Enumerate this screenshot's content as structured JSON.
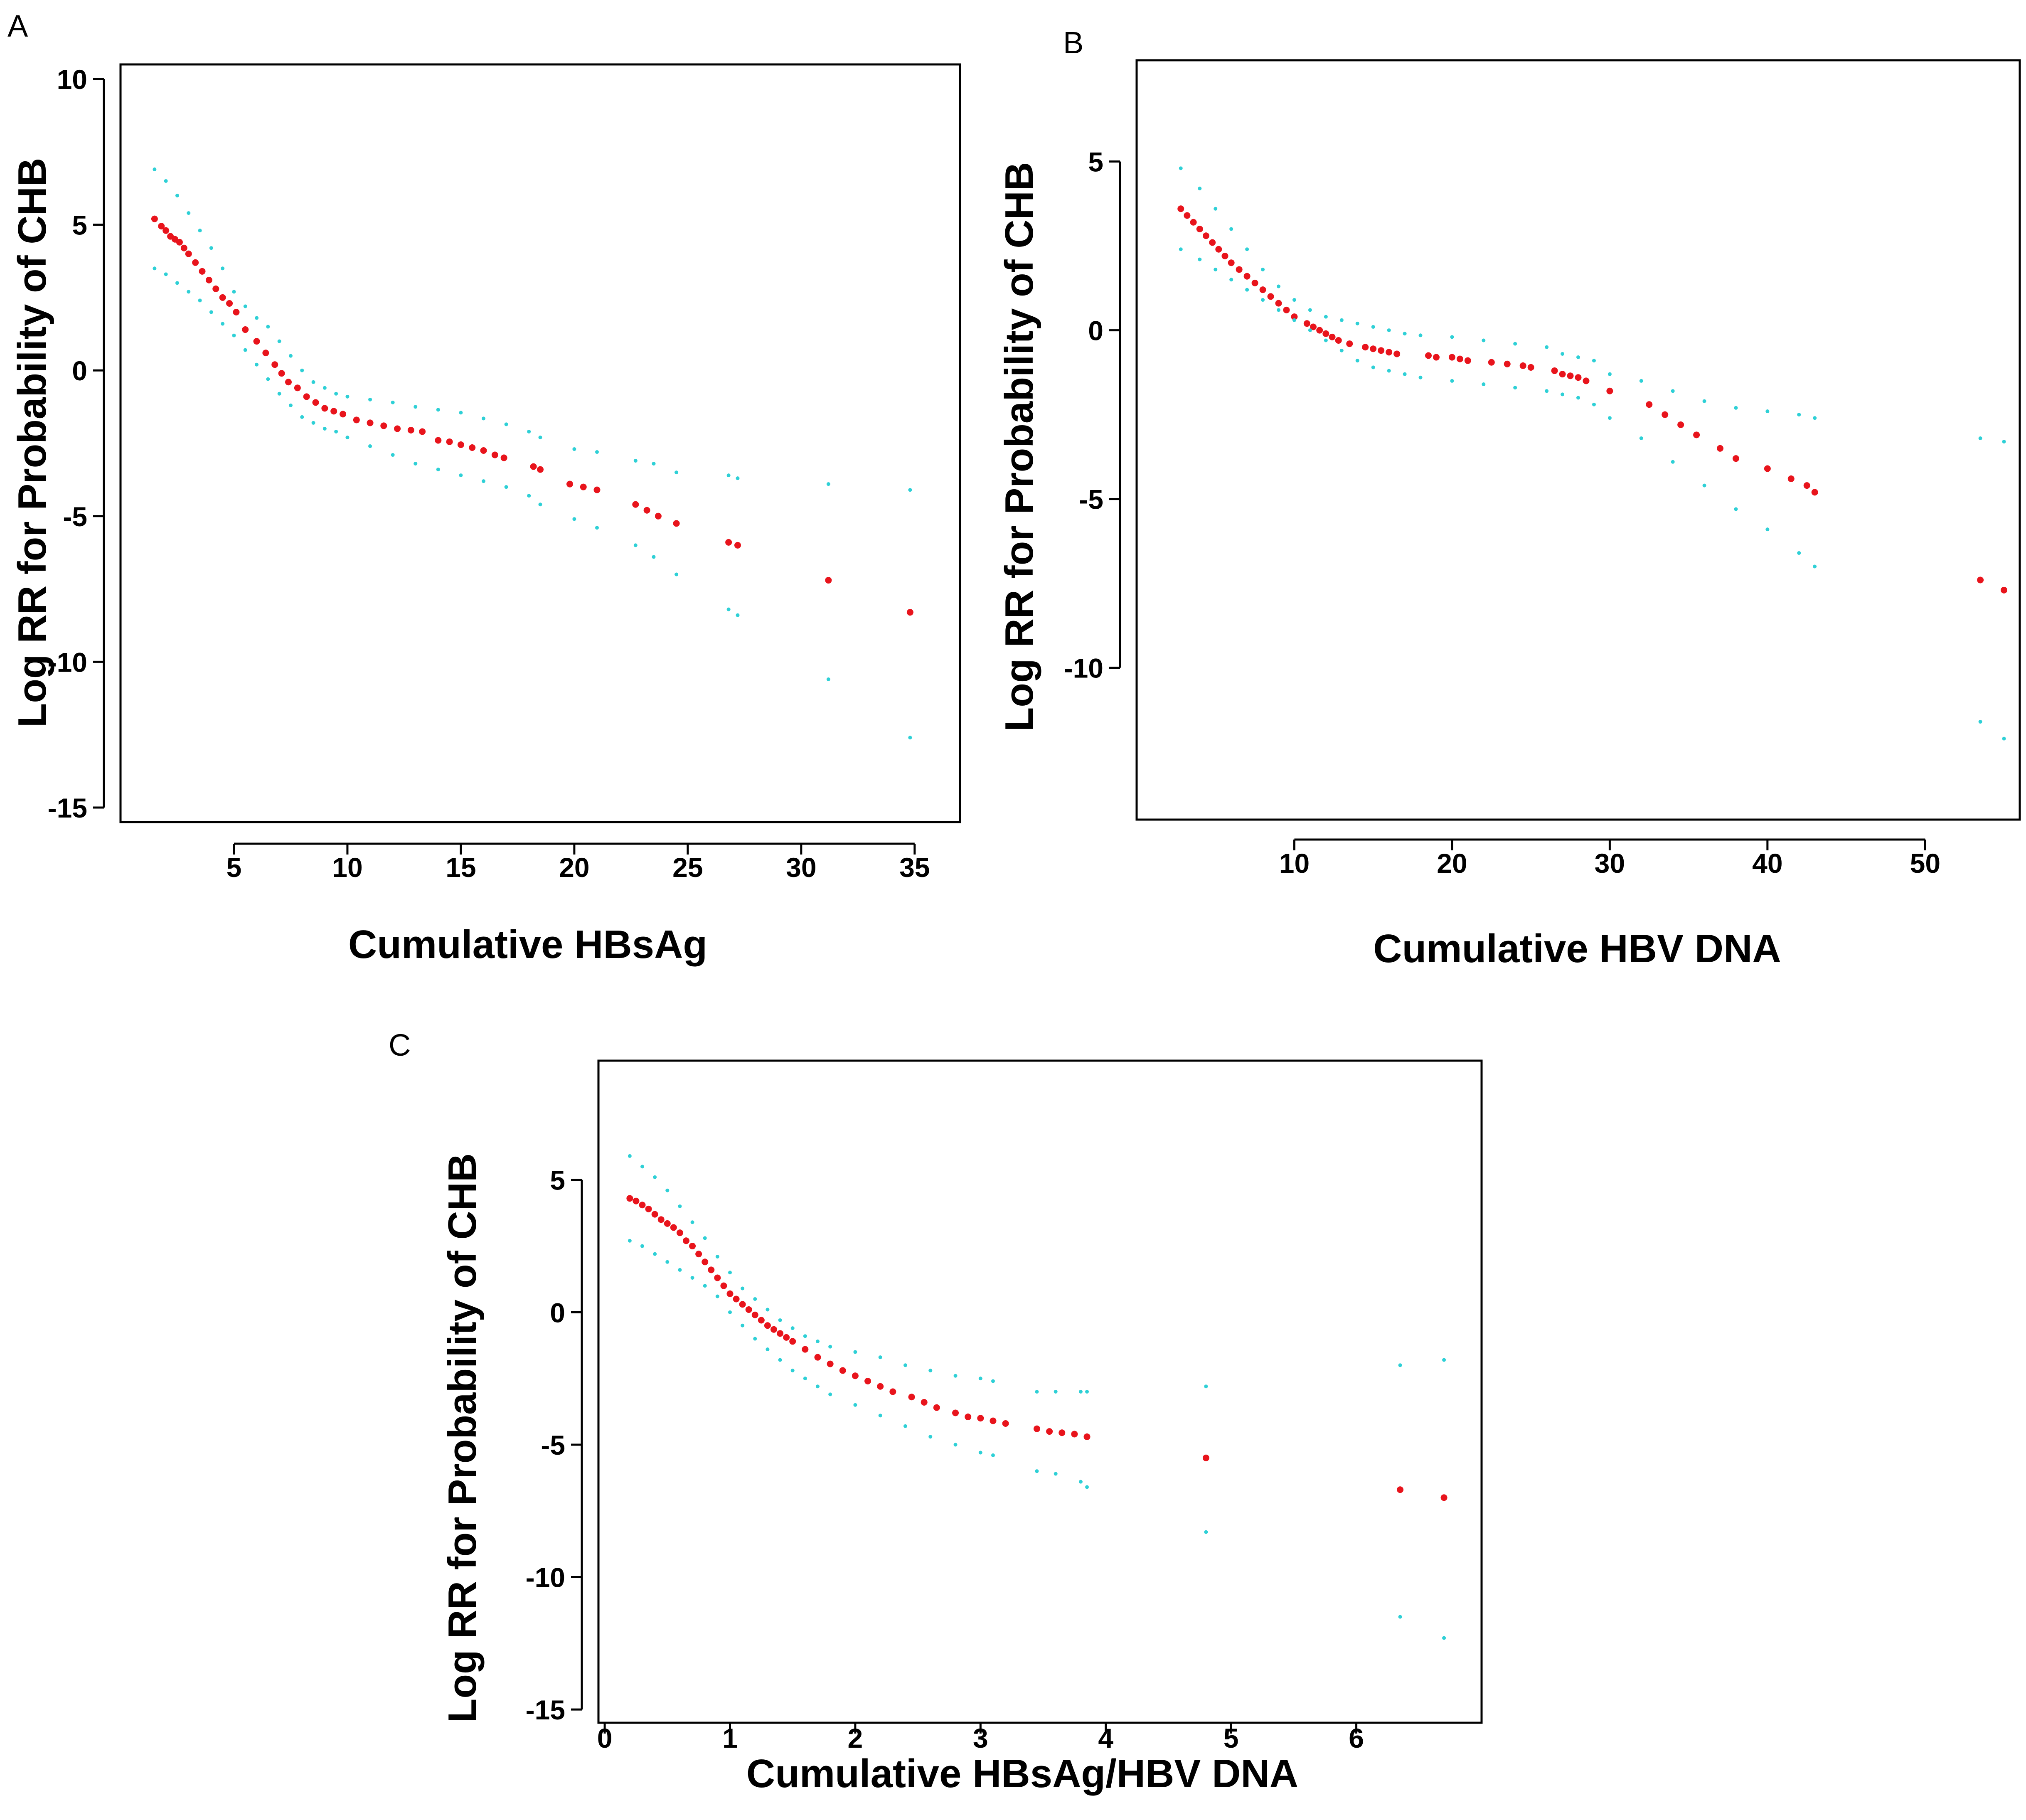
{
  "chart_data": [
    {
      "panel": "A",
      "type": "scatter",
      "title": "",
      "xlabel": "Cumulative  HBsAg",
      "ylabel": "Log RR for Probability  of  CHB",
      "xlim": [
        0,
        37
      ],
      "ylim": [
        -15.5,
        10.5
      ],
      "xticks": [
        5,
        10,
        15,
        20,
        25,
        30,
        35
      ],
      "yticks": [
        10,
        5,
        0,
        -5,
        -10,
        -15
      ],
      "grid": false,
      "legend": "none",
      "colors": {
        "estimate": "#e8141c",
        "ci": "#2ed0d6"
      },
      "series": [
        {
          "role": "estimate",
          "x": [
            1.5,
            1.8,
            2.0,
            2.2,
            2.4,
            2.6,
            2.8,
            3.0,
            3.3,
            3.6,
            3.9,
            4.2,
            4.5,
            4.8,
            5.1,
            5.5,
            6.0,
            6.4,
            6.8,
            7.1,
            7.4,
            7.8,
            8.2,
            8.6,
            9.0,
            9.4,
            9.8,
            10.4,
            11.0,
            11.6,
            12.2,
            12.8,
            13.3,
            14.0,
            14.5,
            15.0,
            15.5,
            16.0,
            16.5,
            16.9,
            18.2,
            18.5,
            19.8,
            20.4,
            21.0,
            22.7,
            23.2,
            23.7,
            24.5,
            26.8,
            27.2,
            31.2,
            34.8
          ],
          "y": [
            5.2,
            4.95,
            4.8,
            4.6,
            4.5,
            4.4,
            4.2,
            4.0,
            3.7,
            3.4,
            3.1,
            2.8,
            2.5,
            2.3,
            2.0,
            1.4,
            1.0,
            0.6,
            0.2,
            -0.1,
            -0.4,
            -0.6,
            -0.9,
            -1.1,
            -1.3,
            -1.4,
            -1.5,
            -1.7,
            -1.8,
            -1.9,
            -2.0,
            -2.05,
            -2.1,
            -2.4,
            -2.45,
            -2.55,
            -2.65,
            -2.75,
            -2.9,
            -3.0,
            -3.3,
            -3.4,
            -3.9,
            -4.0,
            -4.1,
            -4.6,
            -4.8,
            -5.0,
            -5.25,
            -5.9,
            -6.0,
            -7.2,
            -8.3
          ]
        },
        {
          "role": "ci-upper",
          "x": [
            1.5,
            2.0,
            2.5,
            3.0,
            3.5,
            4.0,
            4.5,
            5.0,
            5.5,
            6.0,
            6.5,
            7.0,
            7.5,
            8.0,
            8.5,
            9.0,
            9.5,
            10.0,
            11.0,
            12.0,
            13.0,
            14.0,
            15.0,
            16.0,
            17.0,
            18.0,
            18.5,
            20.0,
            21.0,
            22.7,
            23.5,
            24.5,
            26.8,
            27.2,
            31.2,
            34.8
          ],
          "y": [
            6.9,
            6.5,
            6.0,
            5.4,
            4.8,
            4.2,
            3.5,
            2.7,
            2.2,
            1.8,
            1.5,
            1.0,
            0.5,
            0.0,
            -0.4,
            -0.6,
            -0.8,
            -0.9,
            -1.0,
            -1.1,
            -1.25,
            -1.35,
            -1.45,
            -1.65,
            -1.85,
            -2.1,
            -2.3,
            -2.7,
            -2.8,
            -3.1,
            -3.2,
            -3.5,
            -3.6,
            -3.7,
            -3.9,
            -4.1
          ]
        },
        {
          "role": "ci-lower",
          "x": [
            1.5,
            2.0,
            2.5,
            3.0,
            3.5,
            4.0,
            4.5,
            5.0,
            5.5,
            6.0,
            6.5,
            7.0,
            7.5,
            8.0,
            8.5,
            9.0,
            9.5,
            10.0,
            11.0,
            12.0,
            13.0,
            14.0,
            15.0,
            16.0,
            17.0,
            18.0,
            18.5,
            20.0,
            21.0,
            22.7,
            23.5,
            24.5,
            26.8,
            27.2,
            31.2,
            34.8
          ],
          "y": [
            3.5,
            3.3,
            3.0,
            2.7,
            2.4,
            2.0,
            1.6,
            1.2,
            0.7,
            0.2,
            -0.3,
            -0.8,
            -1.2,
            -1.6,
            -1.8,
            -2.0,
            -2.1,
            -2.3,
            -2.6,
            -2.9,
            -3.2,
            -3.4,
            -3.6,
            -3.8,
            -4.0,
            -4.3,
            -4.6,
            -5.1,
            -5.4,
            -6.0,
            -6.4,
            -7.0,
            -8.2,
            -8.4,
            -10.6,
            -12.6
          ]
        }
      ]
    },
    {
      "panel": "B",
      "type": "scatter",
      "title": "",
      "xlabel": "Cumulative HBV DNA",
      "ylabel": "Log RR for Probability  of  CHB",
      "xlim": [
        0,
        56
      ],
      "ylim": [
        -14.5,
        8
      ],
      "xticks": [
        10,
        20,
        30,
        40,
        50
      ],
      "yticks": [
        5,
        0,
        -5,
        -10
      ],
      "grid": false,
      "legend": "none",
      "colors": {
        "estimate": "#e8141c",
        "ci": "#2ed0d6"
      },
      "series": [
        {
          "role": "estimate",
          "x": [
            2.8,
            3.2,
            3.6,
            4.0,
            4.4,
            4.8,
            5.2,
            5.6,
            6.0,
            6.5,
            7.0,
            7.5,
            8.0,
            8.5,
            9.0,
            9.5,
            10.0,
            10.8,
            11.2,
            11.6,
            12.0,
            12.4,
            12.8,
            13.5,
            14.5,
            15.0,
            15.5,
            16.0,
            16.5,
            18.5,
            19.0,
            20.0,
            20.5,
            21.0,
            22.5,
            23.5,
            24.5,
            25.0,
            26.5,
            27.0,
            27.5,
            28.0,
            28.5,
            30.0,
            32.5,
            33.5,
            34.5,
            35.5,
            37.0,
            38.0,
            40.0,
            41.5,
            42.5,
            43.0,
            53.5,
            55.0
          ],
          "y": [
            3.6,
            3.4,
            3.2,
            3.0,
            2.8,
            2.6,
            2.4,
            2.2,
            2.0,
            1.8,
            1.6,
            1.4,
            1.2,
            1.0,
            0.8,
            0.6,
            0.4,
            0.2,
            0.1,
            0.0,
            -0.1,
            -0.2,
            -0.3,
            -0.4,
            -0.5,
            -0.55,
            -0.6,
            -0.65,
            -0.7,
            -0.75,
            -0.8,
            -0.8,
            -0.85,
            -0.9,
            -0.95,
            -1.0,
            -1.05,
            -1.1,
            -1.2,
            -1.3,
            -1.35,
            -1.4,
            -1.5,
            -1.8,
            -2.2,
            -2.5,
            -2.8,
            -3.1,
            -3.5,
            -3.8,
            -4.1,
            -4.4,
            -4.6,
            -4.8,
            -7.4,
            -7.7
          ]
        },
        {
          "role": "ci-upper",
          "x": [
            2.8,
            4.0,
            5.0,
            6.0,
            7.0,
            8.0,
            9.0,
            10.0,
            11.0,
            12.0,
            13.0,
            14.0,
            15.0,
            16.0,
            17.0,
            18.0,
            20.0,
            22.0,
            24.0,
            26.0,
            27.0,
            28.0,
            29.0,
            30.0,
            32.0,
            34.0,
            36.0,
            38.0,
            40.0,
            42.0,
            43.0,
            53.5,
            55.0
          ],
          "y": [
            4.8,
            4.2,
            3.6,
            3.0,
            2.4,
            1.8,
            1.3,
            0.9,
            0.6,
            0.4,
            0.3,
            0.2,
            0.1,
            0.0,
            -0.1,
            -0.15,
            -0.2,
            -0.3,
            -0.4,
            -0.5,
            -0.7,
            -0.8,
            -0.9,
            -1.3,
            -1.5,
            -1.8,
            -2.1,
            -2.3,
            -2.4,
            -2.5,
            -2.6,
            -3.2,
            -3.3
          ]
        },
        {
          "role": "ci-lower",
          "x": [
            2.8,
            4.0,
            5.0,
            6.0,
            7.0,
            8.0,
            9.0,
            10.0,
            11.0,
            12.0,
            13.0,
            14.0,
            15.0,
            16.0,
            17.0,
            18.0,
            20.0,
            22.0,
            24.0,
            26.0,
            27.0,
            28.0,
            29.0,
            30.0,
            32.0,
            34.0,
            36.0,
            38.0,
            40.0,
            42.0,
            43.0,
            53.5,
            55.0
          ],
          "y": [
            2.4,
            2.1,
            1.8,
            1.5,
            1.2,
            0.9,
            0.6,
            0.3,
            0.0,
            -0.3,
            -0.6,
            -0.9,
            -1.1,
            -1.2,
            -1.3,
            -1.4,
            -1.5,
            -1.6,
            -1.7,
            -1.8,
            -1.9,
            -2.0,
            -2.2,
            -2.6,
            -3.2,
            -3.9,
            -4.6,
            -5.3,
            -5.9,
            -6.6,
            -7.0,
            -11.6,
            -12.1
          ]
        }
      ]
    },
    {
      "panel": "C",
      "type": "scatter",
      "title": "",
      "xlabel": "Cumulative HBsAg/HBV DNA",
      "ylabel": "Log RR for Probability  of  CHB",
      "xlim": [
        -0.05,
        7.0
      ],
      "ylim": [
        -15.5,
        9.5
      ],
      "xticks": [
        0,
        1,
        2,
        3,
        4,
        5,
        6
      ],
      "yticks": [
        5,
        0,
        -5,
        -10,
        -15
      ],
      "grid": false,
      "legend": "none",
      "colors": {
        "estimate": "#e8141c",
        "ci": "#2ed0d6"
      },
      "series": [
        {
          "role": "estimate",
          "x": [
            0.2,
            0.25,
            0.3,
            0.35,
            0.4,
            0.45,
            0.5,
            0.55,
            0.6,
            0.65,
            0.7,
            0.75,
            0.8,
            0.85,
            0.9,
            0.95,
            1.0,
            1.05,
            1.1,
            1.15,
            1.2,
            1.25,
            1.3,
            1.35,
            1.4,
            1.45,
            1.5,
            1.6,
            1.7,
            1.8,
            1.9,
            2.0,
            2.1,
            2.2,
            2.3,
            2.45,
            2.55,
            2.65,
            2.8,
            2.9,
            3.0,
            3.1,
            3.2,
            3.45,
            3.55,
            3.65,
            3.75,
            3.85,
            4.8,
            6.35,
            6.7
          ],
          "y": [
            4.3,
            4.2,
            4.05,
            3.9,
            3.7,
            3.5,
            3.35,
            3.2,
            3.0,
            2.7,
            2.5,
            2.2,
            1.9,
            1.6,
            1.3,
            1.0,
            0.7,
            0.5,
            0.3,
            0.1,
            -0.1,
            -0.3,
            -0.5,
            -0.65,
            -0.8,
            -0.95,
            -1.1,
            -1.4,
            -1.7,
            -1.95,
            -2.2,
            -2.4,
            -2.6,
            -2.8,
            -3.0,
            -3.2,
            -3.4,
            -3.6,
            -3.8,
            -3.95,
            -4.0,
            -4.1,
            -4.2,
            -4.4,
            -4.5,
            -4.55,
            -4.6,
            -4.7,
            -5.5,
            -6.7,
            -7.0
          ]
        },
        {
          "role": "ci-upper",
          "x": [
            0.2,
            0.3,
            0.4,
            0.5,
            0.6,
            0.7,
            0.8,
            0.9,
            1.0,
            1.1,
            1.2,
            1.3,
            1.4,
            1.5,
            1.6,
            1.7,
            1.8,
            2.0,
            2.2,
            2.4,
            2.6,
            2.8,
            3.0,
            3.1,
            3.45,
            3.6,
            3.8,
            3.85,
            4.8,
            6.35,
            6.7
          ],
          "y": [
            5.9,
            5.5,
            5.1,
            4.6,
            4.0,
            3.4,
            2.8,
            2.1,
            1.5,
            0.9,
            0.5,
            0.1,
            -0.3,
            -0.6,
            -0.9,
            -1.1,
            -1.3,
            -1.5,
            -1.7,
            -2.0,
            -2.2,
            -2.4,
            -2.5,
            -2.6,
            -3.0,
            -3.0,
            -3.0,
            -3.0,
            -2.8,
            -2.0,
            -1.8
          ]
        },
        {
          "role": "ci-lower",
          "x": [
            0.2,
            0.3,
            0.4,
            0.5,
            0.6,
            0.7,
            0.8,
            0.9,
            1.0,
            1.1,
            1.2,
            1.3,
            1.4,
            1.5,
            1.6,
            1.7,
            1.8,
            2.0,
            2.2,
            2.4,
            2.6,
            2.8,
            3.0,
            3.1,
            3.45,
            3.6,
            3.8,
            3.85,
            4.8,
            6.35,
            6.7
          ],
          "y": [
            2.7,
            2.5,
            2.2,
            1.9,
            1.6,
            1.3,
            1.0,
            0.6,
            0.0,
            -0.5,
            -1.0,
            -1.4,
            -1.8,
            -2.2,
            -2.5,
            -2.8,
            -3.1,
            -3.5,
            -3.9,
            -4.3,
            -4.7,
            -5.0,
            -5.3,
            -5.4,
            -6.0,
            -6.1,
            -6.4,
            -6.6,
            -8.3,
            -11.5,
            -12.3
          ]
        }
      ]
    }
  ]
}
